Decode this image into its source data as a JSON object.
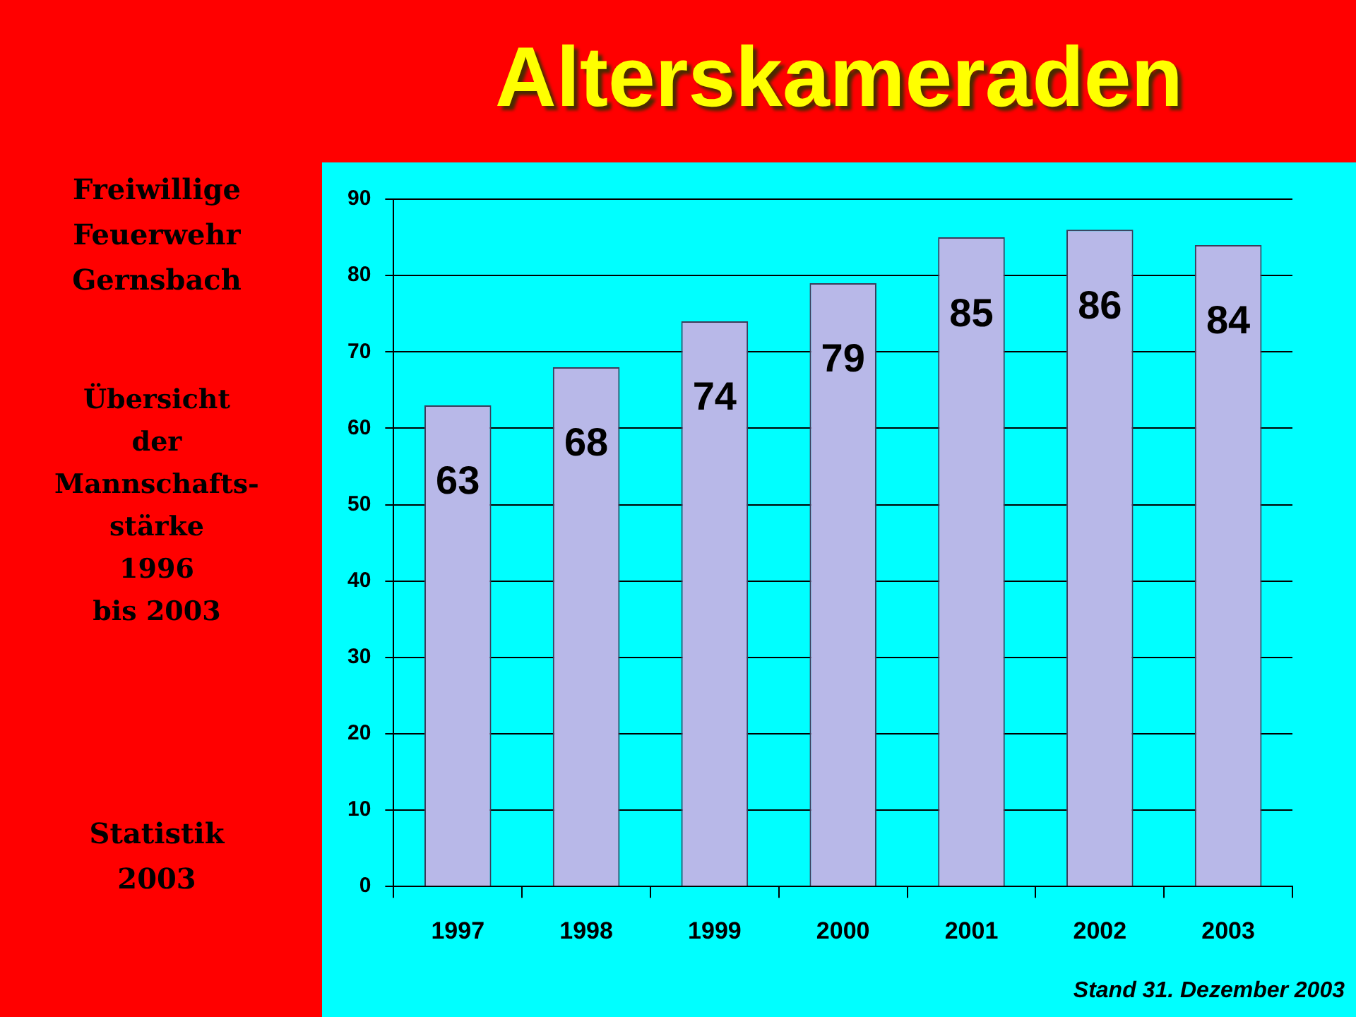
{
  "chart_data": {
    "type": "bar",
    "title": "Alterskameraden",
    "categories": [
      "1997",
      "1998",
      "1999",
      "2000",
      "2001",
      "2002",
      "2003"
    ],
    "values": [
      63,
      68,
      74,
      79,
      85,
      86,
      84
    ],
    "color": "#b8b8e8",
    "ylim": [
      0,
      90
    ],
    "yticks": [
      0,
      10,
      20,
      30,
      40,
      50,
      60,
      70,
      80,
      90
    ],
    "grid": "y",
    "data_labels": true,
    "annotations": [
      "Freiwillige\nFeuerwehr\nGernsbach",
      "Übersicht\nder\nMannschafts-\nstärke\n1996\nbis 2003",
      "Statistik\n2003",
      "Stand 31. Dezember 2003"
    ]
  }
}
